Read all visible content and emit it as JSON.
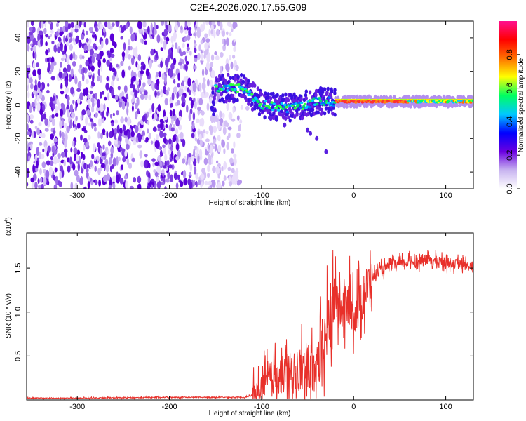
{
  "title": "C2E4.2026.020.17.55.G09",
  "chart_data": [
    {
      "type": "heatmap",
      "name": "spectrogram",
      "title": "C2E4.2026.020.17.55.G09",
      "xlabel": "Height of straight line (km)",
      "ylabel": "Frequency (Hz)",
      "xlim": [
        -355,
        130
      ],
      "ylim": [
        -50,
        50
      ],
      "xticks": [
        -300,
        -200,
        -100,
        0,
        100
      ],
      "yticks": [
        -40,
        -20,
        0,
        20,
        40
      ],
      "colorbar": {
        "label": "Normalized spectral amplitude",
        "range": [
          0,
          1
        ],
        "ticks": [
          "0.0",
          "0.2",
          "0.4",
          "0.6",
          "0.8"
        ],
        "colors": [
          "#ffffff",
          "#c8b4f0",
          "#6a00e0",
          "#0000ff",
          "#00c8ff",
          "#00ff60",
          "#ffff00",
          "#ff7000",
          "#ff0000",
          "#ff1090"
        ]
      },
      "regions": [
        {
          "desc": "noise",
          "x": [
            -355,
            -150
          ],
          "freq": [
            -50,
            50
          ],
          "amplitude": 0.12
        },
        {
          "desc": "signal",
          "x": [
            -150,
            130
          ],
          "freq_center_km": [
            [
              -150,
              10
            ],
            [
              -120,
              10
            ],
            [
              -100,
              0
            ],
            [
              -70,
              -2
            ],
            [
              -40,
              2
            ],
            [
              -20,
              2
            ],
            [
              0,
              2
            ],
            [
              130,
              2
            ]
          ],
          "amplitude": 0.9
        }
      ]
    },
    {
      "type": "line",
      "name": "snr",
      "xlabel": "Height of straight line (km)",
      "ylabel": "SNR (10 * v/v)",
      "yunit": "(x10",
      "yunit_exp": "4",
      "yunit_close": ")",
      "xlim": [
        -355,
        130
      ],
      "ylim": [
        0,
        1.9
      ],
      "xticks": [
        -300,
        -200,
        -100,
        0,
        100
      ],
      "yticks": [
        "0.5",
        "1.0",
        "1.5"
      ],
      "ytick_values": [
        0.5,
        1.0,
        1.5
      ],
      "color": "#e8302a",
      "series": [
        {
          "name": "SNR",
          "x": [
            -355,
            -300,
            -200,
            -120,
            -105,
            -100,
            -90,
            -80,
            -70,
            -60,
            -50,
            -40,
            -35,
            -30,
            -25,
            -22,
            -20,
            -18,
            -15,
            -10,
            -5,
            0,
            5,
            10,
            15,
            20,
            25,
            30,
            40,
            50,
            60,
            70,
            80,
            90,
            100,
            110,
            120,
            130
          ],
          "y": [
            0.02,
            0.02,
            0.03,
            0.03,
            0.06,
            0.15,
            0.25,
            0.28,
            0.3,
            0.32,
            0.35,
            0.4,
            0.5,
            0.75,
            0.95,
            1.1,
            1.2,
            1.1,
            1.0,
            1.05,
            1.1,
            1.0,
            1.05,
            1.15,
            1.3,
            1.4,
            1.45,
            1.48,
            1.52,
            1.55,
            1.57,
            1.58,
            1.6,
            1.58,
            1.57,
            1.55,
            1.53,
            1.52
          ]
        }
      ]
    }
  ]
}
